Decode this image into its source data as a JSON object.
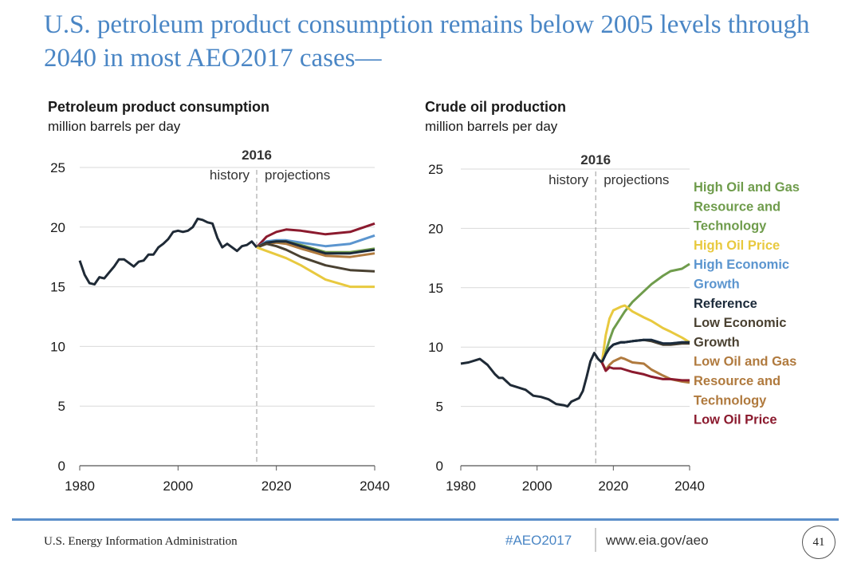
{
  "slide": {
    "title": "U.S. petroleum product consumption remains below 2005 levels through 2040 in most AEO2017 cases—",
    "footer": {
      "agency": "U.S. Energy Information Administration",
      "hashtag": "#AEO2017",
      "url": "www.eia.gov/aeo",
      "page": "41"
    },
    "colors": {
      "title": "#4a86c5",
      "footer_line": "#5b8fca"
    }
  },
  "chart_data": [
    {
      "type": "line",
      "title": "Petroleum product consumption",
      "subtitle": "million barrels per day",
      "divider": {
        "year": "2016",
        "left_label": "history",
        "right_label": "projections"
      },
      "xlim": [
        1980,
        2040
      ],
      "ylim": [
        0,
        25
      ],
      "xticks": [
        "1980",
        "2000",
        "2020",
        "2040"
      ],
      "yticks": [
        "0",
        "5",
        "10",
        "15",
        "20",
        "25"
      ],
      "grid": true,
      "history": {
        "color": "#1f2a36",
        "x": [
          1980,
          1981,
          1982,
          1983,
          1984,
          1985,
          1986,
          1987,
          1988,
          1989,
          1990,
          1991,
          1992,
          1993,
          1994,
          1995,
          1996,
          1997,
          1998,
          1999,
          2000,
          2001,
          2002,
          2003,
          2004,
          2005,
          2006,
          2007,
          2008,
          2009,
          2010,
          2011,
          2012,
          2013,
          2014,
          2015,
          2016
        ],
        "y": [
          17.2,
          16.0,
          15.3,
          15.2,
          15.8,
          15.7,
          16.2,
          16.7,
          17.3,
          17.3,
          17.0,
          16.7,
          17.1,
          17.2,
          17.7,
          17.7,
          18.3,
          18.6,
          19.0,
          19.6,
          19.7,
          19.6,
          19.7,
          20.0,
          20.7,
          20.6,
          20.4,
          20.3,
          19.1,
          18.3,
          18.6,
          18.3,
          18.0,
          18.4,
          18.5,
          18.8,
          18.3
        ]
      },
      "projection_x": [
        2016,
        2018,
        2020,
        2022,
        2025,
        2030,
        2035,
        2040
      ],
      "series": [
        {
          "name": "Low Oil Price",
          "color": "#8b1a2e",
          "y": [
            18.3,
            19.2,
            19.6,
            19.8,
            19.7,
            19.4,
            19.6,
            20.3
          ]
        },
        {
          "name": "High Economic Growth",
          "color": "#5b95cf",
          "y": [
            18.3,
            18.8,
            18.9,
            18.9,
            18.7,
            18.4,
            18.6,
            19.3
          ]
        },
        {
          "name": "Low Oil and Gas Resource and Technology",
          "color": "#b07a3e",
          "y": [
            18.3,
            18.6,
            18.7,
            18.6,
            18.2,
            17.6,
            17.5,
            17.8
          ]
        },
        {
          "name": "High Oil and Gas Resource and Technology",
          "color": "#6f9c4c",
          "y": [
            18.3,
            18.7,
            18.8,
            18.8,
            18.5,
            17.9,
            17.9,
            18.2
          ]
        },
        {
          "name": "Reference",
          "color": "#1b2a3a",
          "y": [
            18.3,
            18.7,
            18.8,
            18.8,
            18.4,
            17.8,
            17.8,
            18.1
          ]
        },
        {
          "name": "Low Economic Growth",
          "color": "#4a4131",
          "y": [
            18.3,
            18.6,
            18.4,
            18.1,
            17.5,
            16.8,
            16.4,
            16.3
          ]
        },
        {
          "name": "High Oil Price",
          "color": "#e8c93f",
          "y": [
            18.3,
            18.0,
            17.7,
            17.4,
            16.8,
            15.6,
            15.0,
            15.0
          ]
        }
      ]
    },
    {
      "type": "line",
      "title": "Crude oil production",
      "subtitle": "million barrels per day",
      "divider": {
        "year": "2016",
        "left_label": "history",
        "right_label": "projections"
      },
      "xlim": [
        1980,
        2040
      ],
      "ylim": [
        0,
        25
      ],
      "xticks": [
        "1980",
        "2000",
        "2020",
        "2040"
      ],
      "yticks": [
        "0",
        "5",
        "10",
        "15",
        "20",
        "25"
      ],
      "grid": true,
      "legend_position": "right",
      "history": {
        "color": "#1f2a36",
        "x": [
          1980,
          1982,
          1984,
          1985,
          1987,
          1989,
          1990,
          1991,
          1993,
          1995,
          1997,
          1999,
          2001,
          2003,
          2005,
          2007,
          2008,
          2009,
          2011,
          2012,
          2013,
          2014,
          2015,
          2016,
          2017
        ],
        "y": [
          8.6,
          8.7,
          8.9,
          9.0,
          8.5,
          7.7,
          7.4,
          7.4,
          6.8,
          6.6,
          6.4,
          5.9,
          5.8,
          5.6,
          5.2,
          5.1,
          5.0,
          5.4,
          5.7,
          6.3,
          7.5,
          8.8,
          9.5,
          9.0,
          8.7
        ]
      },
      "projection_x": [
        2017,
        2018,
        2019,
        2020,
        2022,
        2023,
        2025,
        2028,
        2030,
        2033,
        2035,
        2038,
        2040
      ],
      "series": [
        {
          "name": "High Oil and Gas Resource and Technology",
          "legend_lines": [
            "High Oil and Gas",
            "Resource and",
            "Technology"
          ],
          "color": "#6f9c4c",
          "y": [
            8.7,
            9.6,
            10.6,
            11.5,
            12.5,
            13.0,
            13.8,
            14.7,
            15.3,
            16.0,
            16.4,
            16.6,
            17.0
          ]
        },
        {
          "name": "High Oil Price",
          "legend_lines": [
            "High Oil Price"
          ],
          "color": "#e8c93f",
          "y": [
            8.7,
            11.0,
            12.4,
            13.1,
            13.4,
            13.5,
            13.0,
            12.5,
            12.2,
            11.6,
            11.3,
            10.8,
            10.4
          ]
        },
        {
          "name": "High Economic Growth",
          "legend_lines": [
            "High Economic",
            "Growth"
          ],
          "color": "#5b95cf",
          "y": [
            8.7,
            9.4,
            9.9,
            10.2,
            10.4,
            10.4,
            10.5,
            10.6,
            10.6,
            10.3,
            10.3,
            10.4,
            10.4
          ]
        },
        {
          "name": "Low Economic Growth",
          "legend_lines": [
            "Low Economic",
            "Growth"
          ],
          "color": "#4a4131",
          "y": [
            8.7,
            9.4,
            9.9,
            10.2,
            10.4,
            10.4,
            10.5,
            10.6,
            10.5,
            10.2,
            10.2,
            10.3,
            10.3
          ]
        },
        {
          "name": "Reference",
          "legend_lines": [
            "Reference"
          ],
          "color": "#1b2a3a",
          "y": [
            8.7,
            9.4,
            9.9,
            10.2,
            10.4,
            10.4,
            10.5,
            10.6,
            10.6,
            10.3,
            10.3,
            10.4,
            10.4
          ]
        },
        {
          "name": "Low Oil and Gas Resource and Technology",
          "legend_lines": [
            "Low Oil and Gas",
            "Resource and",
            "Technology"
          ],
          "color": "#b07a3e",
          "y": [
            8.7,
            8.1,
            8.5,
            8.8,
            9.1,
            9.0,
            8.7,
            8.6,
            8.1,
            7.6,
            7.3,
            7.1,
            7.0
          ]
        },
        {
          "name": "Low Oil Price",
          "legend_lines": [
            "Low Oil Price"
          ],
          "color": "#8b1a2e",
          "y": [
            8.7,
            8.0,
            8.3,
            8.2,
            8.2,
            8.1,
            7.9,
            7.7,
            7.5,
            7.3,
            7.3,
            7.2,
            7.2
          ]
        }
      ],
      "legend_order": [
        {
          "lines": [
            "High Oil and Gas",
            "Resource and",
            "Technology"
          ],
          "color": "#6f9c4c"
        },
        {
          "lines": [
            "High Oil Price"
          ],
          "color": "#e8c93f"
        },
        {
          "lines": [
            "High Economic",
            "Growth"
          ],
          "color": "#5b95cf"
        },
        {
          "lines": [
            "Reference"
          ],
          "color": "#1b2a3a"
        },
        {
          "lines": [
            "Low Economic",
            "Growth"
          ],
          "color": "#4a4131"
        },
        {
          "lines": [
            "Low Oil and Gas",
            "Resource and",
            "Technology"
          ],
          "color": "#b07a3e"
        },
        {
          "lines": [
            "Low Oil Price"
          ],
          "color": "#8b1a2e"
        }
      ]
    }
  ]
}
